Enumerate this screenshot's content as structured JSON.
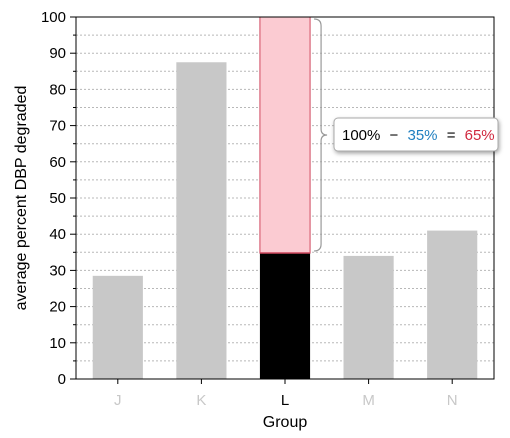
{
  "chart_data": {
    "type": "bar",
    "categories": [
      "J",
      "K",
      "L",
      "M",
      "N"
    ],
    "values": [
      28.5,
      87.5,
      34.8,
      34,
      41
    ],
    "highlight": {
      "category": "L",
      "value": 34.8,
      "remainder_to": 100
    },
    "xlabel": "Group",
    "ylabel": "average percent DBP degraded",
    "ylim": [
      0,
      100
    ],
    "yticks": [
      0,
      10,
      20,
      30,
      40,
      50,
      60,
      70,
      80,
      90,
      100
    ],
    "minor_grid_step": 5,
    "grid": true,
    "annotation": {
      "total": "100%",
      "minus": "−",
      "part": "35%",
      "equals": "=",
      "result": "65%"
    },
    "colors": {
      "bar": "#c8c8c8",
      "highlight_bar": "#000000",
      "remainder_fill": "#fbcbd2",
      "remainder_edge": "#d0485e",
      "part_text": "#1f7fc0",
      "result_text": "#d0283e",
      "dim_category": "#c8c8c8",
      "grid": "#b8b8b8"
    }
  }
}
